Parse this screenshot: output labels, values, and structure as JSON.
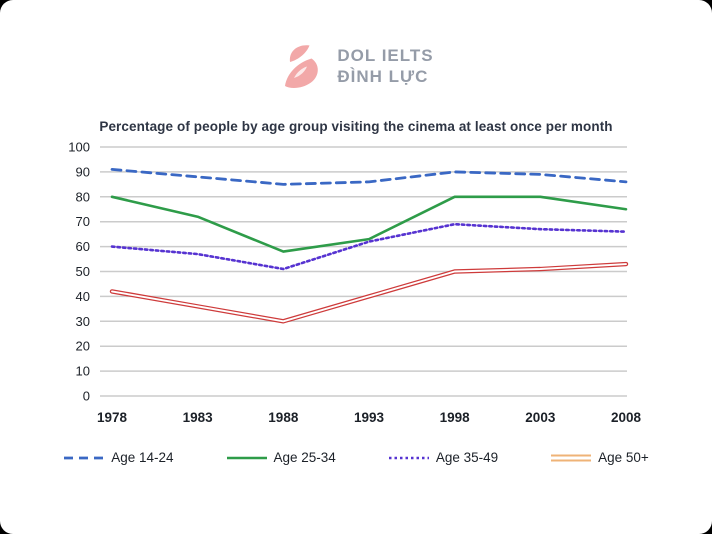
{
  "logo": {
    "line1": "DOL IELTS",
    "line2": "ĐÌNH LỰC",
    "icon_color": "#F2A8A8",
    "text_color": "#959CA8"
  },
  "chart_data": {
    "type": "line",
    "title": "Percentage of people by age group visiting the cinema at least once per month",
    "categories": [
      "1978",
      "1983",
      "1988",
      "1993",
      "1998",
      "2003",
      "2008"
    ],
    "series": [
      {
        "name": "Age 14-24",
        "values": [
          91,
          88,
          85,
          86,
          90,
          89,
          86
        ],
        "color": "#3A68C4",
        "legend_color": "#3A68C4",
        "style": "dashed"
      },
      {
        "name": "Age 25-34",
        "values": [
          80,
          72,
          58,
          63,
          80,
          80,
          75
        ],
        "color": "#2E9C49",
        "legend_color": "#2E9C49",
        "style": "solid"
      },
      {
        "name": "Age 35-49",
        "values": [
          60,
          57,
          51,
          62,
          69,
          67,
          66
        ],
        "color": "#5633D1",
        "legend_color": "#5633D1",
        "style": "dotted"
      },
      {
        "name": "Age 50+",
        "values": [
          42,
          36,
          30,
          40,
          50,
          51,
          53
        ],
        "color": "#CE3B3B",
        "legend_color": "#EFB377",
        "style": "double"
      }
    ],
    "ylim": [
      0,
      100
    ],
    "ytick_step": 10,
    "grid": true,
    "gridline_color": "#CBCBCB",
    "legend_position": "bottom"
  }
}
